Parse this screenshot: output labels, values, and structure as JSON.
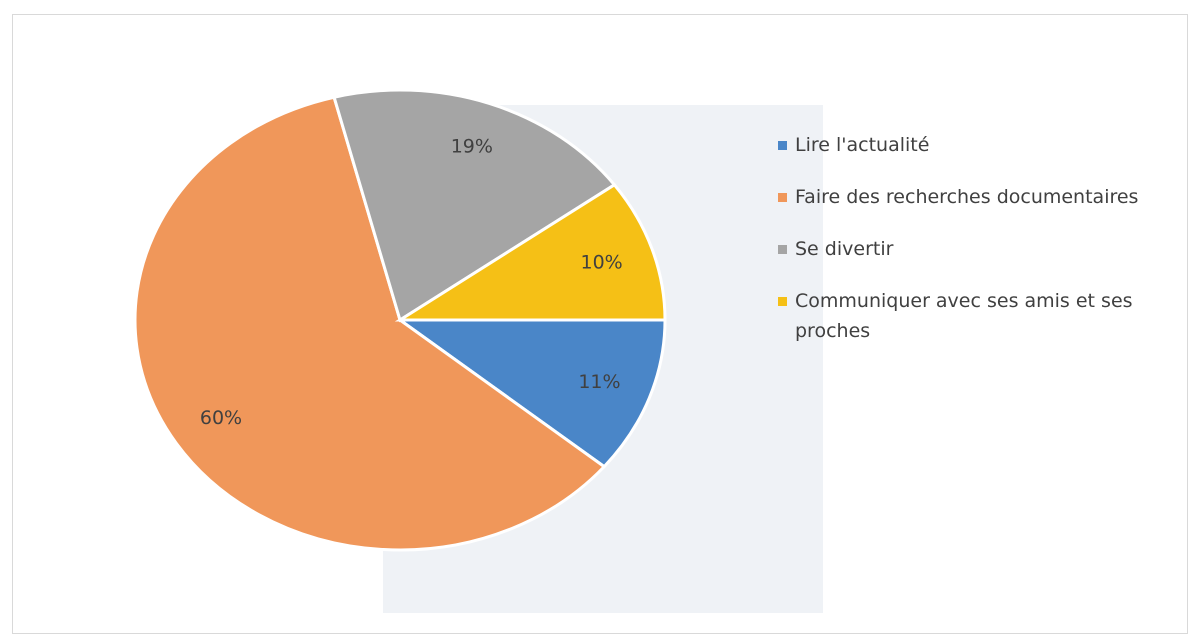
{
  "chart_data": {
    "type": "pie",
    "categories": [
      "Lire l'actualité",
      "Faire des recherches documentaires",
      "Se divertir",
      "Communiquer avec ses amis et ses proches"
    ],
    "values": [
      11,
      60,
      19,
      10
    ],
    "value_labels": [
      "11%",
      "60%",
      "19%",
      "10%"
    ],
    "colors": [
      "#4a86c8",
      "#f0975a",
      "#a5a5a5",
      "#f5c016"
    ],
    "legend": "right"
  }
}
